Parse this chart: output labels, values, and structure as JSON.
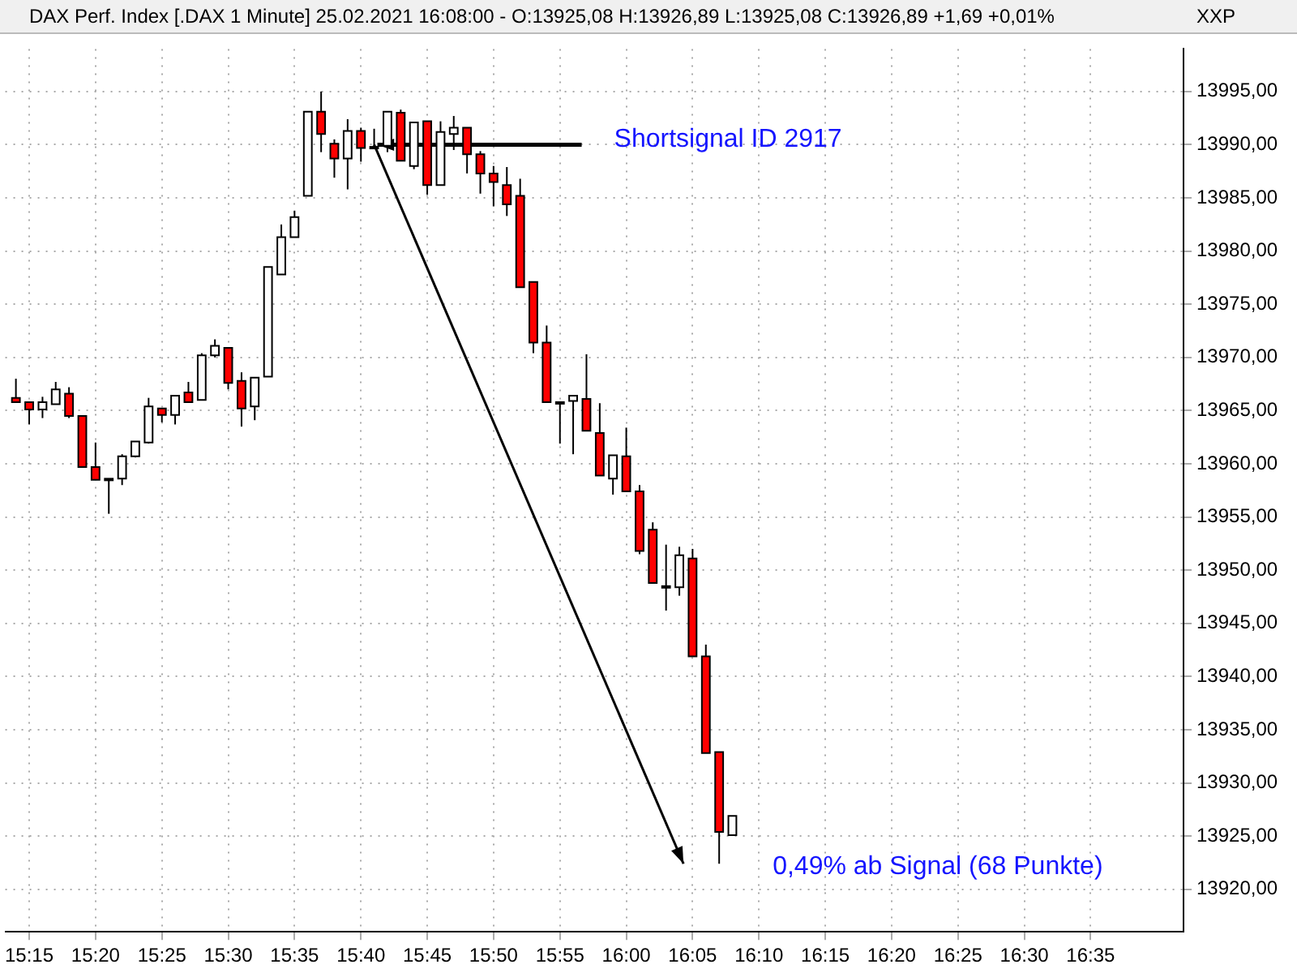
{
  "chart_data": {
    "type": "candlestick",
    "title": "DAX Perf. Index [.DAX  1 Minute] 25.02.2021 16:08:00 -",
    "subtitle": "O:13925,08 H:13926,89 L:13925,08 C:13926,89 +1,69 +0,01%",
    "x": [
      15.2333,
      15.25,
      15.2667,
      15.2833,
      15.3,
      15.3167,
      15.3333,
      15.35,
      15.3667,
      15.3833,
      15.4,
      15.4167,
      15.4333,
      15.45,
      15.4667,
      15.4833,
      15.5,
      15.5167,
      15.5333,
      15.55,
      15.5667,
      15.5833,
      15.6,
      15.6167,
      15.6333,
      15.65,
      15.6667,
      15.6833,
      15.7,
      15.7167,
      15.7333,
      15.75,
      15.7667,
      15.7833,
      15.8,
      15.8167,
      15.8333,
      15.85,
      15.8667,
      15.8833,
      15.9,
      15.9167,
      15.9333,
      15.95,
      15.9667,
      15.9833,
      16.0,
      16.0167,
      16.0333,
      16.05,
      16.0667,
      16.0833,
      16.1,
      16.1167,
      16.1333
    ],
    "ohlc": [
      [
        13966.2,
        13968.0,
        13965.8,
        13965.8
      ],
      [
        13965.8,
        13965.8,
        13963.7,
        13965.1
      ],
      [
        13965.1,
        13966.3,
        13964.3,
        13965.8
      ],
      [
        13965.6,
        13967.7,
        13965.6,
        13967.0
      ],
      [
        13966.6,
        13967.2,
        13964.3,
        13964.5
      ],
      [
        13964.5,
        13964.5,
        13959.7,
        13959.7
      ],
      [
        13959.7,
        13962.0,
        13958.5,
        13958.5
      ],
      [
        13958.6,
        13958.6,
        13955.3,
        13958.5
      ],
      [
        13958.6,
        13960.9,
        13958.0,
        13960.7
      ],
      [
        13960.7,
        13962.1,
        13960.6,
        13962.1
      ],
      [
        13962.0,
        13966.2,
        13961.9,
        13965.4
      ],
      [
        13965.2,
        13965.2,
        13963.9,
        13964.6
      ],
      [
        13964.6,
        13966.4,
        13963.7,
        13966.4
      ],
      [
        13966.7,
        13967.7,
        13965.8,
        13965.8
      ],
      [
        13966.0,
        13970.4,
        13966.0,
        13970.2
      ],
      [
        13970.2,
        13971.7,
        13970.0,
        13971.1
      ],
      [
        13970.9,
        13970.9,
        13967.0,
        13967.6
      ],
      [
        13967.8,
        13968.6,
        13963.5,
        13965.2
      ],
      [
        13965.4,
        13968.1,
        13964.1,
        13968.1
      ],
      [
        13968.2,
        13978.5,
        13968.2,
        13978.5
      ],
      [
        13977.8,
        13982.5,
        13977.8,
        13981.3
      ],
      [
        13981.3,
        13983.8,
        13981.3,
        13983.2
      ],
      [
        13985.2,
        13993.1,
        13985.2,
        13993.1
      ],
      [
        13993.1,
        13995.0,
        13989.3,
        13991.0
      ],
      [
        13990.1,
        13990.5,
        13986.9,
        13988.7
      ],
      [
        13988.7,
        13992.4,
        13985.8,
        13991.3
      ],
      [
        13991.3,
        13991.6,
        13988.4,
        13989.7
      ],
      [
        13989.8,
        13991.5,
        13989.8,
        13989.8
      ],
      [
        13989.9,
        13993.1,
        13989.3,
        13993.1
      ],
      [
        13993.0,
        13993.3,
        13988.5,
        13988.5
      ],
      [
        13988.0,
        13992.1,
        13987.7,
        13992.1
      ],
      [
        13992.2,
        13992.2,
        13985.3,
        13986.2
      ],
      [
        13986.2,
        13992.2,
        13986.2,
        13991.2
      ],
      [
        13991.0,
        13992.7,
        13989.5,
        13991.6
      ],
      [
        13991.6,
        13991.6,
        13987.3,
        13989.1
      ],
      [
        13989.1,
        13989.4,
        13985.4,
        13987.3
      ],
      [
        13987.3,
        13988.0,
        13984.2,
        13986.5
      ],
      [
        13986.2,
        13987.9,
        13983.3,
        13984.4
      ],
      [
        13985.2,
        13986.8,
        13976.6,
        13976.6
      ],
      [
        13977.1,
        13977.1,
        13970.4,
        13971.4
      ],
      [
        13971.4,
        13973.0,
        13965.8,
        13965.8
      ],
      [
        13965.8,
        13965.8,
        13961.9,
        13965.8
      ],
      [
        13965.9,
        13966.4,
        13960.9,
        13966.4
      ],
      [
        13966.1,
        13970.3,
        13963.1,
        13963.1
      ],
      [
        13962.9,
        13965.7,
        13958.9,
        13958.9
      ],
      [
        13958.6,
        13960.8,
        13957.1,
        13960.8
      ],
      [
        13960.7,
        13963.4,
        13957.4,
        13957.4
      ],
      [
        13957.4,
        13958.0,
        13951.5,
        13951.8
      ],
      [
        13953.8,
        13954.5,
        13948.8,
        13948.8
      ],
      [
        13948.5,
        13952.4,
        13946.2,
        13948.5
      ],
      [
        13948.4,
        13952.2,
        13947.6,
        13951.4
      ],
      [
        13951.1,
        13952.0,
        13941.9,
        13941.9
      ],
      [
        13941.9,
        13943.0,
        13932.8,
        13932.8
      ],
      [
        13932.9,
        13932.9,
        13922.4,
        13925.4
      ],
      [
        13925.08,
        13926.89,
        13925.08,
        13926.89
      ]
    ],
    "xlim": [
      15.22,
      16.7
    ],
    "xticks": [
      {
        "value": 15.25,
        "label": "15:15"
      },
      {
        "value": 15.3333,
        "label": "15:20"
      },
      {
        "value": 15.4167,
        "label": "15:25"
      },
      {
        "value": 15.5,
        "label": "15:30"
      },
      {
        "value": 15.5833,
        "label": "15:35"
      },
      {
        "value": 15.6667,
        "label": "15:40"
      },
      {
        "value": 15.75,
        "label": "15:45"
      },
      {
        "value": 15.8333,
        "label": "15:50"
      },
      {
        "value": 15.9167,
        "label": "15:55"
      },
      {
        "value": 16.0,
        "label": "16:00"
      },
      {
        "value": 16.0833,
        "label": "16:05"
      },
      {
        "value": 16.1667,
        "label": "16:10"
      },
      {
        "value": 16.25,
        "label": "16:15"
      },
      {
        "value": 16.3333,
        "label": "16:20"
      },
      {
        "value": 16.4167,
        "label": "16:25"
      },
      {
        "value": 16.5,
        "label": "16:30"
      },
      {
        "value": 16.5833,
        "label": "16:35"
      }
    ],
    "ylim": [
      13916,
      13999
    ],
    "yticks": [
      {
        "value": 13920,
        "label": "13920,00"
      },
      {
        "value": 13925,
        "label": "13925,00"
      },
      {
        "value": 13930,
        "label": "13930,00"
      },
      {
        "value": 13935,
        "label": "13935,00"
      },
      {
        "value": 13940,
        "label": "13940,00"
      },
      {
        "value": 13945,
        "label": "13945,00"
      },
      {
        "value": 13950,
        "label": "13950,00"
      },
      {
        "value": 13955,
        "label": "13955,00"
      },
      {
        "value": 13960,
        "label": "13960,00"
      },
      {
        "value": 13965,
        "label": "13965,00"
      },
      {
        "value": 13970,
        "label": "13970,00"
      },
      {
        "value": 13975,
        "label": "13975,00"
      },
      {
        "value": 13980,
        "label": "13980,00"
      },
      {
        "value": 13985,
        "label": "13985,00"
      },
      {
        "value": 13990,
        "label": "13990,00"
      },
      {
        "value": 13995,
        "label": "13995,00"
      }
    ],
    "grid": true,
    "legend": false,
    "annotations": [
      {
        "text": "Shortsignal ID 2917",
        "x": 15.6833,
        "y": 13990
      },
      {
        "text": "0,49% ab Signal (68 Punkte)",
        "x": 16.1167,
        "y": 13922.4
      },
      "XXP"
    ]
  }
}
